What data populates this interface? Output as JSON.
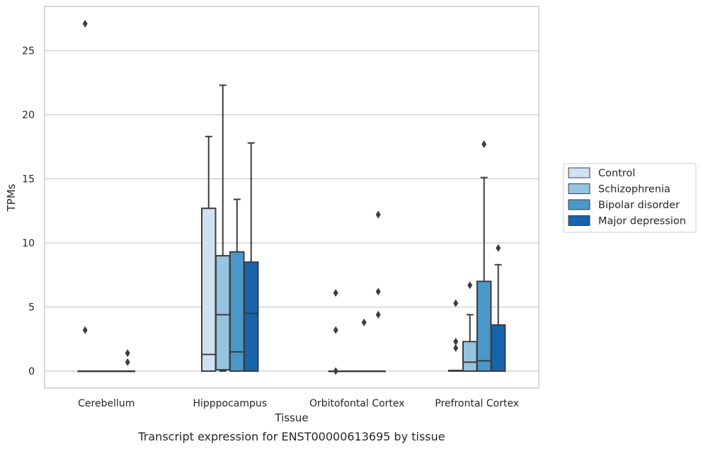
{
  "caption": "Transcript expression for ENST00000613695 by tissue",
  "chart_data": {
    "type": "box",
    "xlabel": "Tissue",
    "ylabel": "TPMs",
    "ylim": [
      -1.3,
      28.5
    ],
    "yticks": [
      0,
      5,
      10,
      15,
      20,
      25
    ],
    "grid": true,
    "legend_position": "right",
    "categories": [
      "Cerebellum",
      "Hipppocampus",
      "Orbitofontal Cortex",
      "Prefrontal Cortex"
    ],
    "series": [
      {
        "name": "Control",
        "color": "#d0e1f2",
        "boxes": [
          {
            "q1": 0,
            "median": 0,
            "q3": 0,
            "whisker_low": 0,
            "whisker_high": 0,
            "outliers": [
              27.1,
              3.2
            ]
          },
          {
            "q1": 0,
            "median": 1.3,
            "q3": 12.7,
            "whisker_low": 0,
            "whisker_high": 18.3,
            "outliers": []
          },
          {
            "q1": 0,
            "median": 0,
            "q3": 0,
            "whisker_low": 0,
            "whisker_high": 0,
            "outliers": [
              6.1,
              3.2,
              0.0
            ]
          },
          {
            "q1": 0,
            "median": 0,
            "q3": 0.05,
            "whisker_low": 0,
            "whisker_high": 0.05,
            "outliers": [
              5.3,
              2.3,
              1.8
            ]
          }
        ]
      },
      {
        "name": "Schizophrenia",
        "color": "#94c4df",
        "boxes": [
          {
            "q1": 0,
            "median": 0,
            "q3": 0,
            "whisker_low": 0,
            "whisker_high": 0,
            "outliers": []
          },
          {
            "q1": 0.1,
            "median": 4.4,
            "q3": 9.0,
            "whisker_low": 0,
            "whisker_high": 22.3,
            "outliers": []
          },
          {
            "q1": 0,
            "median": 0,
            "q3": 0,
            "whisker_low": 0,
            "whisker_high": 0,
            "outliers": []
          },
          {
            "q1": 0,
            "median": 0.7,
            "q3": 2.3,
            "whisker_low": 0,
            "whisker_high": 4.4,
            "outliers": [
              6.7
            ]
          }
        ]
      },
      {
        "name": "Bipolar disorder",
        "color": "#4a98c9",
        "boxes": [
          {
            "q1": 0,
            "median": 0,
            "q3": 0,
            "whisker_low": 0,
            "whisker_high": 0,
            "outliers": []
          },
          {
            "q1": 0,
            "median": 1.5,
            "q3": 9.3,
            "whisker_low": 0,
            "whisker_high": 13.4,
            "outliers": []
          },
          {
            "q1": 0,
            "median": 0,
            "q3": 0,
            "whisker_low": 0,
            "whisker_high": 0,
            "outliers": [
              3.8
            ]
          },
          {
            "q1": 0,
            "median": 0.8,
            "q3": 7.0,
            "whisker_low": 0,
            "whisker_high": 15.1,
            "outliers": [
              17.7
            ]
          }
        ]
      },
      {
        "name": "Major depression",
        "color": "#1764ab",
        "boxes": [
          {
            "q1": 0,
            "median": 0,
            "q3": 0,
            "whisker_low": 0,
            "whisker_high": 0,
            "outliers": [
              1.4,
              0.7
            ]
          },
          {
            "q1": 0,
            "median": 4.5,
            "q3": 8.5,
            "whisker_low": 0,
            "whisker_high": 17.8,
            "outliers": []
          },
          {
            "q1": 0,
            "median": 0,
            "q3": 0,
            "whisker_low": 0,
            "whisker_high": 0,
            "outliers": [
              12.2,
              6.2,
              4.4
            ]
          },
          {
            "q1": 0,
            "median": 0,
            "q3": 3.6,
            "whisker_low": 0,
            "whisker_high": 8.3,
            "outliers": [
              9.6
            ]
          }
        ]
      }
    ]
  }
}
